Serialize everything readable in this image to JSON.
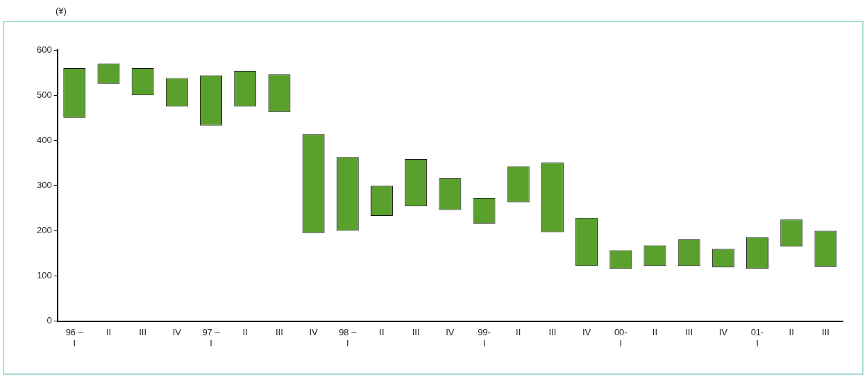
{
  "chart_data": {
    "type": "bar",
    "ylabel": "(¥)",
    "categories": [
      "96 –\nI",
      "II",
      "III",
      "IV",
      "97 –\nI",
      "II",
      "III",
      "IV",
      "98 –\nI",
      "II",
      "III",
      "IV",
      "99-\nI",
      "II",
      "III",
      "IV",
      "00-\nI",
      "II",
      "III",
      "IV",
      "01-\nI",
      "II",
      "III"
    ],
    "base": [
      450,
      525,
      500,
      475,
      433,
      475,
      463,
      195,
      200,
      233,
      254,
      246,
      216,
      263,
      197,
      122,
      116,
      122,
      122,
      119,
      116,
      165,
      121
    ],
    "values": [
      110,
      45,
      60,
      63,
      111,
      79,
      83,
      219,
      163,
      67,
      105,
      70,
      57,
      80,
      154,
      107,
      41,
      46,
      59,
      41,
      70,
      60,
      79
    ],
    "color": "#5aa02c",
    "ylim": [
      0,
      600
    ],
    "yticks": [
      0,
      100,
      200,
      300,
      400,
      500,
      600
    ],
    "grid": false,
    "legend": false
  }
}
